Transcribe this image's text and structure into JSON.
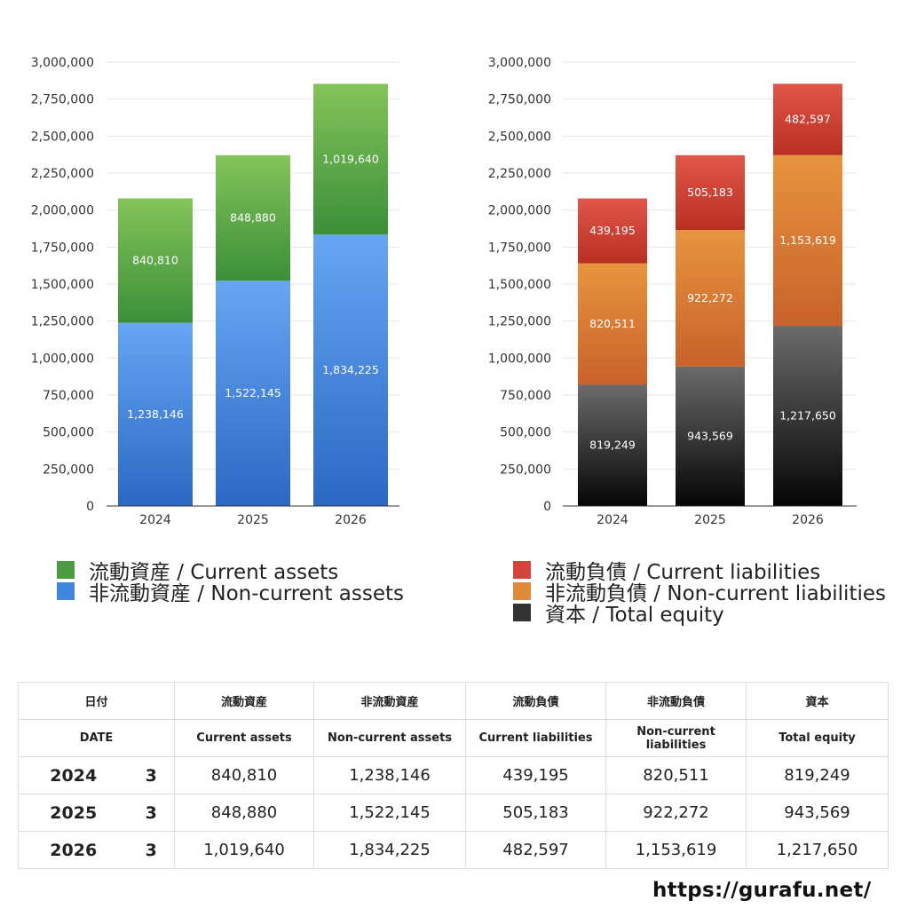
{
  "chart_data": [
    {
      "type": "bar",
      "stacked": true,
      "categories": [
        "2024",
        "2025",
        "2026"
      ],
      "y_ticks": [
        "0",
        "250,000",
        "500,000",
        "750,000",
        "1,000,000",
        "1,250,000",
        "1,500,000",
        "1,750,000",
        "2,000,000",
        "2,250,000",
        "2,500,000",
        "2,750,000",
        "3,000,000"
      ],
      "ylim": [
        0,
        3000000
      ],
      "grid": true,
      "series": [
        {
          "name": "非流動資産 / Non-current assets",
          "values": [
            1238146,
            1522145,
            1834225
          ],
          "labels": [
            "1,238,146",
            "1,522,145",
            "1,834,225"
          ],
          "color_top": "#66a6f3",
          "color_bottom": "#2b68c4"
        },
        {
          "name": "流動資産 / Current assets",
          "values": [
            840810,
            848880,
            1019640
          ],
          "labels": [
            "840,810",
            "848,880",
            "1,019,640"
          ],
          "color_top": "#84c45a",
          "color_bottom": "#3b8f38"
        }
      ],
      "legend": [
        {
          "label": "流動資産 / Current assets",
          "color": "#4c9a3f"
        },
        {
          "label": "非流動資産 / Non-current assets",
          "color": "#3f86dd"
        }
      ]
    },
    {
      "type": "bar",
      "stacked": true,
      "categories": [
        "2024",
        "2025",
        "2026"
      ],
      "y_ticks": [
        "0",
        "250,000",
        "500,000",
        "750,000",
        "1,000,000",
        "1,250,000",
        "1,500,000",
        "1,750,000",
        "2,000,000",
        "2,250,000",
        "2,500,000",
        "2,750,000",
        "3,000,000"
      ],
      "ylim": [
        0,
        3000000
      ],
      "grid": true,
      "series": [
        {
          "name": "資本 / Total equity",
          "values": [
            819249,
            943569,
            1217650
          ],
          "labels": [
            "819,249",
            "943,569",
            "1,217,650"
          ],
          "color_top": "#6b6b6b",
          "color_bottom": "#050505"
        },
        {
          "name": "非流動負債 / Non-current liabilities",
          "values": [
            820511,
            922272,
            1153619
          ],
          "labels": [
            "820,511",
            "922,272",
            "1,153,619"
          ],
          "color_top": "#e7943f",
          "color_bottom": "#c8622a"
        },
        {
          "name": "流動負債 / Current liabilities",
          "values": [
            439195,
            505183,
            482597
          ],
          "labels": [
            "439,195",
            "505,183",
            "482,597"
          ],
          "color_top": "#e0574a",
          "color_bottom": "#b92f22"
        }
      ],
      "legend": [
        {
          "label": "流動負債 / Current liabilities",
          "color": "#d2453a"
        },
        {
          "label": "非流動負債 / Non-current liabilities",
          "color": "#e28a3c"
        },
        {
          "label": "資本 / Total equity",
          "color": "#333333"
        }
      ]
    }
  ],
  "table": {
    "header_ja": [
      "日付",
      "流動資産",
      "非流動資産",
      "流動負債",
      "非流動負債",
      "資本"
    ],
    "header_en": [
      "DATE",
      "Current assets",
      "Non-current assets",
      "Current liabilities",
      "Non-current liabilities",
      "Total equity"
    ],
    "rows": [
      {
        "year": "2024",
        "count": "3",
        "values": [
          "840,810",
          "1,238,146",
          "439,195",
          "820,511",
          "819,249"
        ]
      },
      {
        "year": "2025",
        "count": "3",
        "values": [
          "848,880",
          "1,522,145",
          "505,183",
          "922,272",
          "943,569"
        ]
      },
      {
        "year": "2026",
        "count": "3",
        "values": [
          "1,019,640",
          "1,834,225",
          "482,597",
          "1,153,619",
          "1,217,650"
        ]
      }
    ]
  },
  "footer": {
    "url": "https://gurafu.net/"
  }
}
